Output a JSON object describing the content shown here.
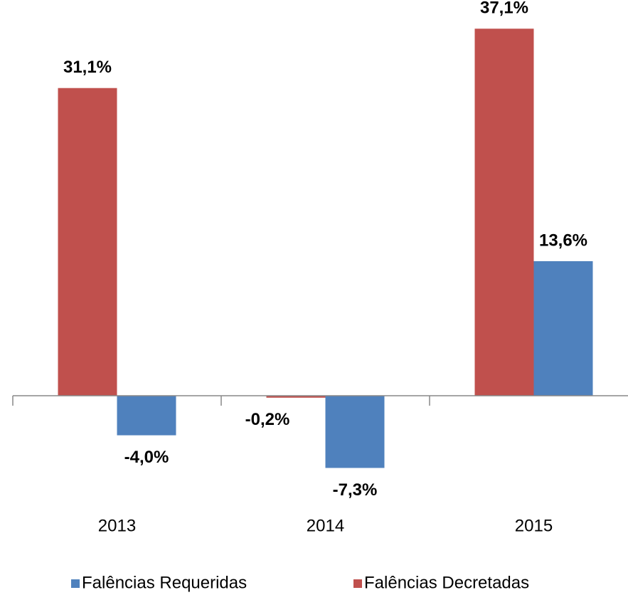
{
  "chart_data": {
    "type": "bar",
    "categories": [
      "2013",
      "2014",
      "2015"
    ],
    "series": [
      {
        "name": "Falências Requeridas",
        "color": "#4f81bd",
        "values": [
          -4.0,
          -7.3,
          13.6
        ],
        "value_labels": [
          "-4,0%",
          "-7,3%",
          "13,6%"
        ]
      },
      {
        "name": "Falências Decretadas",
        "color": "#c0504d",
        "values": [
          31.1,
          -0.2,
          37.1
        ],
        "value_labels": [
          "31,1%",
          "-0,2%",
          "37,1%"
        ]
      }
    ],
    "ylim": [
      -10,
      40
    ]
  }
}
